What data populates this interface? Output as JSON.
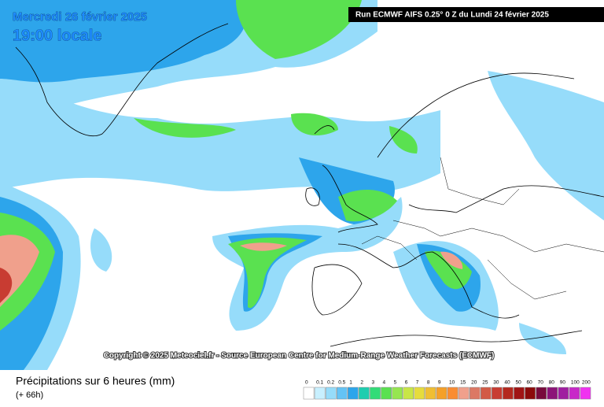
{
  "header": {
    "date": "Mercredi 26 février 2025",
    "time": "19:00 locale",
    "run": "Run ECMWF AIFS 0.25° 0 Z du Lundi 24 février 2025"
  },
  "copyright": "Copyright © 2025 Meteociel.fr - Source European Centre for Medium-Range Weather Forecasts (ECMWF)",
  "footer": {
    "title": "Précipitations sur 6 heures (mm)",
    "lead": "(+ 66h)"
  },
  "legend": {
    "items": [
      {
        "label": "0",
        "color": "#ffffff"
      },
      {
        "label": "0.1",
        "color": "#c8f0ff"
      },
      {
        "label": "0.2",
        "color": "#96dcfa"
      },
      {
        "label": "0.5",
        "color": "#64c3f5"
      },
      {
        "label": "1",
        "color": "#2da5eb"
      },
      {
        "label": "2",
        "color": "#1ecdaf"
      },
      {
        "label": "3",
        "color": "#32dc78"
      },
      {
        "label": "4",
        "color": "#5ae150"
      },
      {
        "label": "5",
        "color": "#96e650"
      },
      {
        "label": "6",
        "color": "#c8e646"
      },
      {
        "label": "7",
        "color": "#e6dc3c"
      },
      {
        "label": "8",
        "color": "#f0be32"
      },
      {
        "label": "9",
        "color": "#f5a028"
      },
      {
        "label": "10",
        "color": "#fa8c32"
      },
      {
        "label": "15",
        "color": "#f0a08c"
      },
      {
        "label": "20",
        "color": "#dc7864"
      },
      {
        "label": "25",
        "color": "#d25a46"
      },
      {
        "label": "30",
        "color": "#c83c32"
      },
      {
        "label": "40",
        "color": "#b4281e"
      },
      {
        "label": "50",
        "color": "#a01414"
      },
      {
        "label": "60",
        "color": "#8c0a0a"
      },
      {
        "label": "70",
        "color": "#780a3c"
      },
      {
        "label": "80",
        "color": "#8c1478"
      },
      {
        "label": "90",
        "color": "#a01ea0"
      },
      {
        "label": "100",
        "color": "#c828c8"
      },
      {
        "label": "200",
        "color": "#f032f0"
      }
    ]
  }
}
